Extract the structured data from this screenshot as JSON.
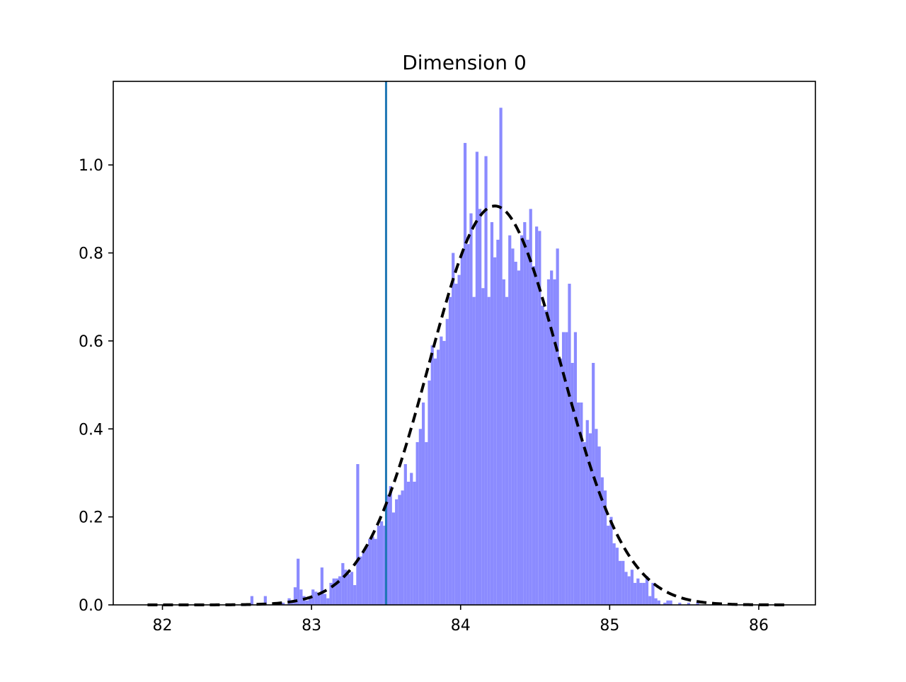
{
  "chart_data": {
    "type": "bar",
    "title": "Dimension 0",
    "xlabel": "",
    "ylabel": "",
    "xlim": [
      81.67,
      86.38
    ],
    "ylim": [
      0,
      1.19
    ],
    "grid": false,
    "bin_width": 0.02,
    "x_ticks": [
      82,
      83,
      84,
      85,
      86
    ],
    "y_ticks": [
      0.0,
      0.2,
      0.4,
      0.6,
      0.8,
      1.0
    ],
    "x_tick_labels": [
      "82",
      "83",
      "84",
      "85",
      "86"
    ],
    "y_tick_labels": [
      "0.0",
      "0.2",
      "0.4",
      "0.6",
      "0.8",
      "1.0"
    ],
    "vertical_line": {
      "x": 83.5
    },
    "normal_fit": {
      "mean": 84.23,
      "std": 0.44,
      "x_range": [
        81.9,
        86.2
      ]
    },
    "histogram": {
      "color": "#8b8bff",
      "bins": [
        {
          "x": 82.6,
          "y": 0.02
        },
        {
          "x": 82.66,
          "y": 0.005
        },
        {
          "x": 82.69,
          "y": 0.02
        },
        {
          "x": 82.75,
          "y": 0.005
        },
        {
          "x": 82.81,
          "y": 0.005
        },
        {
          "x": 82.85,
          "y": 0.015
        },
        {
          "x": 82.87,
          "y": 0.005
        },
        {
          "x": 82.89,
          "y": 0.04
        },
        {
          "x": 82.91,
          "y": 0.105
        },
        {
          "x": 82.93,
          "y": 0.035
        },
        {
          "x": 82.95,
          "y": 0.02
        },
        {
          "x": 82.97,
          "y": 0.01
        },
        {
          "x": 82.99,
          "y": 0.015
        },
        {
          "x": 83.01,
          "y": 0.035
        },
        {
          "x": 83.03,
          "y": 0.03
        },
        {
          "x": 83.05,
          "y": 0.025
        },
        {
          "x": 83.07,
          "y": 0.085
        },
        {
          "x": 83.09,
          "y": 0.025
        },
        {
          "x": 83.11,
          "y": 0.015
        },
        {
          "x": 83.13,
          "y": 0.05
        },
        {
          "x": 83.15,
          "y": 0.06
        },
        {
          "x": 83.17,
          "y": 0.06
        },
        {
          "x": 83.19,
          "y": 0.065
        },
        {
          "x": 83.21,
          "y": 0.095
        },
        {
          "x": 83.23,
          "y": 0.08
        },
        {
          "x": 83.25,
          "y": 0.07
        },
        {
          "x": 83.27,
          "y": 0.075
        },
        {
          "x": 83.29,
          "y": 0.045
        },
        {
          "x": 83.31,
          "y": 0.32
        },
        {
          "x": 83.33,
          "y": 0.11
        },
        {
          "x": 83.35,
          "y": 0.12
        },
        {
          "x": 83.37,
          "y": 0.135
        },
        {
          "x": 83.39,
          "y": 0.15
        },
        {
          "x": 83.41,
          "y": 0.155
        },
        {
          "x": 83.43,
          "y": 0.15
        },
        {
          "x": 83.45,
          "y": 0.18
        },
        {
          "x": 83.47,
          "y": 0.19
        },
        {
          "x": 83.49,
          "y": 0.18
        },
        {
          "x": 83.51,
          "y": 0.25
        },
        {
          "x": 83.53,
          "y": 0.27
        },
        {
          "x": 83.55,
          "y": 0.21
        },
        {
          "x": 83.57,
          "y": 0.24
        },
        {
          "x": 83.59,
          "y": 0.25
        },
        {
          "x": 83.61,
          "y": 0.26
        },
        {
          "x": 83.63,
          "y": 0.32
        },
        {
          "x": 83.65,
          "y": 0.28
        },
        {
          "x": 83.67,
          "y": 0.3
        },
        {
          "x": 83.69,
          "y": 0.28
        },
        {
          "x": 83.71,
          "y": 0.37
        },
        {
          "x": 83.73,
          "y": 0.4
        },
        {
          "x": 83.75,
          "y": 0.46
        },
        {
          "x": 83.77,
          "y": 0.37
        },
        {
          "x": 83.79,
          "y": 0.51
        },
        {
          "x": 83.81,
          "y": 0.59
        },
        {
          "x": 83.83,
          "y": 0.56
        },
        {
          "x": 83.85,
          "y": 0.58
        },
        {
          "x": 83.87,
          "y": 0.61
        },
        {
          "x": 83.89,
          "y": 0.6
        },
        {
          "x": 83.91,
          "y": 0.65
        },
        {
          "x": 83.93,
          "y": 0.7
        },
        {
          "x": 83.95,
          "y": 0.8
        },
        {
          "x": 83.97,
          "y": 0.73
        },
        {
          "x": 83.99,
          "y": 0.75
        },
        {
          "x": 84.01,
          "y": 0.8
        },
        {
          "x": 84.03,
          "y": 1.05
        },
        {
          "x": 84.05,
          "y": 0.82
        },
        {
          "x": 84.07,
          "y": 0.89
        },
        {
          "x": 84.09,
          "y": 0.7
        },
        {
          "x": 84.11,
          "y": 1.03
        },
        {
          "x": 84.13,
          "y": 0.9
        },
        {
          "x": 84.15,
          "y": 0.72
        },
        {
          "x": 84.17,
          "y": 1.02
        },
        {
          "x": 84.19,
          "y": 0.7
        },
        {
          "x": 84.21,
          "y": 0.87
        },
        {
          "x": 84.23,
          "y": 0.79
        },
        {
          "x": 84.25,
          "y": 0.83
        },
        {
          "x": 84.27,
          "y": 1.13
        },
        {
          "x": 84.29,
          "y": 0.74
        },
        {
          "x": 84.31,
          "y": 0.7
        },
        {
          "x": 84.33,
          "y": 0.84
        },
        {
          "x": 84.35,
          "y": 0.81
        },
        {
          "x": 84.37,
          "y": 0.78
        },
        {
          "x": 84.39,
          "y": 0.76
        },
        {
          "x": 84.41,
          "y": 0.84
        },
        {
          "x": 84.43,
          "y": 0.87
        },
        {
          "x": 84.45,
          "y": 0.83
        },
        {
          "x": 84.47,
          "y": 0.9
        },
        {
          "x": 84.49,
          "y": 0.77
        },
        {
          "x": 84.51,
          "y": 0.86
        },
        {
          "x": 84.53,
          "y": 0.85
        },
        {
          "x": 84.55,
          "y": 0.68
        },
        {
          "x": 84.57,
          "y": 0.67
        },
        {
          "x": 84.59,
          "y": 0.74
        },
        {
          "x": 84.61,
          "y": 0.76
        },
        {
          "x": 84.63,
          "y": 0.74
        },
        {
          "x": 84.65,
          "y": 0.81
        },
        {
          "x": 84.67,
          "y": 0.56
        },
        {
          "x": 84.69,
          "y": 0.62
        },
        {
          "x": 84.71,
          "y": 0.62
        },
        {
          "x": 84.73,
          "y": 0.73
        },
        {
          "x": 84.75,
          "y": 0.55
        },
        {
          "x": 84.77,
          "y": 0.62
        },
        {
          "x": 84.79,
          "y": 0.46
        },
        {
          "x": 84.81,
          "y": 0.46
        },
        {
          "x": 84.83,
          "y": 0.37
        },
        {
          "x": 84.85,
          "y": 0.42
        },
        {
          "x": 84.87,
          "y": 0.39
        },
        {
          "x": 84.89,
          "y": 0.55
        },
        {
          "x": 84.91,
          "y": 0.4
        },
        {
          "x": 84.93,
          "y": 0.36
        },
        {
          "x": 84.95,
          "y": 0.29
        },
        {
          "x": 84.97,
          "y": 0.26
        },
        {
          "x": 84.99,
          "y": 0.18
        },
        {
          "x": 85.01,
          "y": 0.2
        },
        {
          "x": 85.03,
          "y": 0.14
        },
        {
          "x": 85.05,
          "y": 0.13
        },
        {
          "x": 85.07,
          "y": 0.1
        },
        {
          "x": 85.09,
          "y": 0.1
        },
        {
          "x": 85.11,
          "y": 0.075
        },
        {
          "x": 85.13,
          "y": 0.065
        },
        {
          "x": 85.15,
          "y": 0.08
        },
        {
          "x": 85.17,
          "y": 0.05
        },
        {
          "x": 85.19,
          "y": 0.06
        },
        {
          "x": 85.21,
          "y": 0.05
        },
        {
          "x": 85.23,
          "y": 0.05
        },
        {
          "x": 85.25,
          "y": 0.065
        },
        {
          "x": 85.27,
          "y": 0.02
        },
        {
          "x": 85.29,
          "y": 0.05
        },
        {
          "x": 85.31,
          "y": 0.015
        },
        {
          "x": 85.33,
          "y": 0.01
        },
        {
          "x": 85.37,
          "y": 0.005
        },
        {
          "x": 85.39,
          "y": 0.01
        },
        {
          "x": 85.41,
          "y": 0.01
        },
        {
          "x": 85.47,
          "y": 0.005
        },
        {
          "x": 85.53,
          "y": 0.005
        },
        {
          "x": 85.59,
          "y": 0.005
        }
      ]
    }
  }
}
